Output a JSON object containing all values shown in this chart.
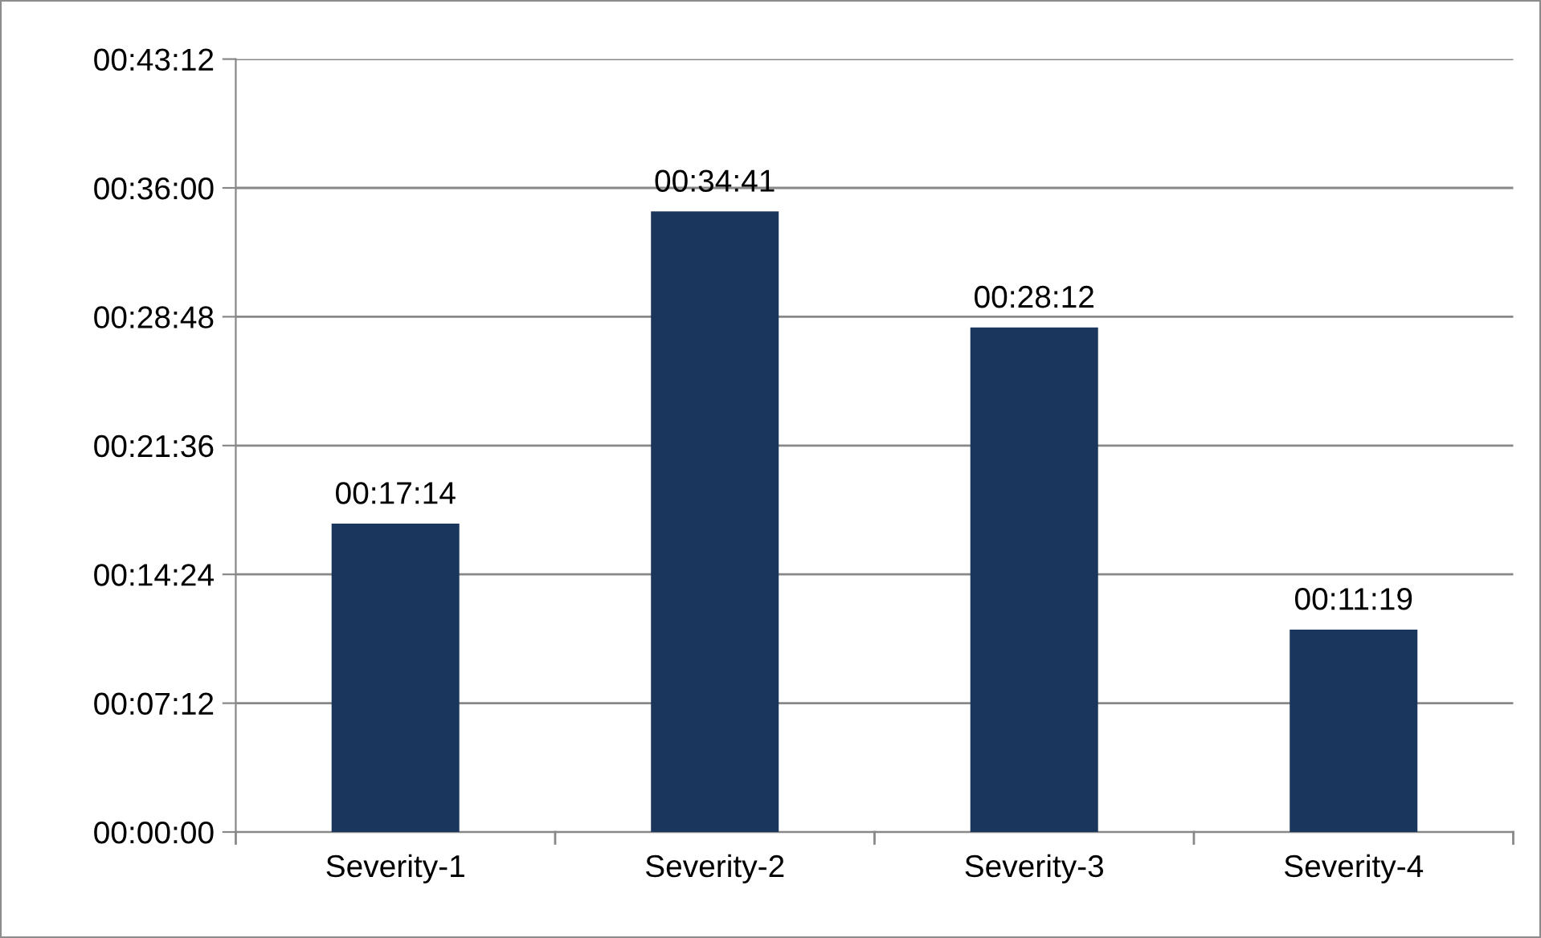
{
  "chart_data": {
    "type": "bar",
    "categories": [
      "Severity-1",
      "Severity-2",
      "Severity-3",
      "Severity-4"
    ],
    "values": [
      1034,
      2081,
      1692,
      679
    ],
    "value_labels": [
      "00:17:14",
      "00:34:41",
      "00:28:12",
      "00:11:19"
    ],
    "color": "#1a365d",
    "ylim": [
      0,
      2592
    ],
    "yticks": [
      {
        "value": 0,
        "label": "00:00:00"
      },
      {
        "value": 432,
        "label": "00:07:12"
      },
      {
        "value": 864,
        "label": "00:14:24"
      },
      {
        "value": 1296,
        "label": "00:21:36"
      },
      {
        "value": 1728,
        "label": "00:28:48"
      },
      {
        "value": 2160,
        "label": "00:36:00"
      },
      {
        "value": 2592,
        "label": "00:43:12"
      }
    ],
    "grid": "y",
    "legend": false
  }
}
